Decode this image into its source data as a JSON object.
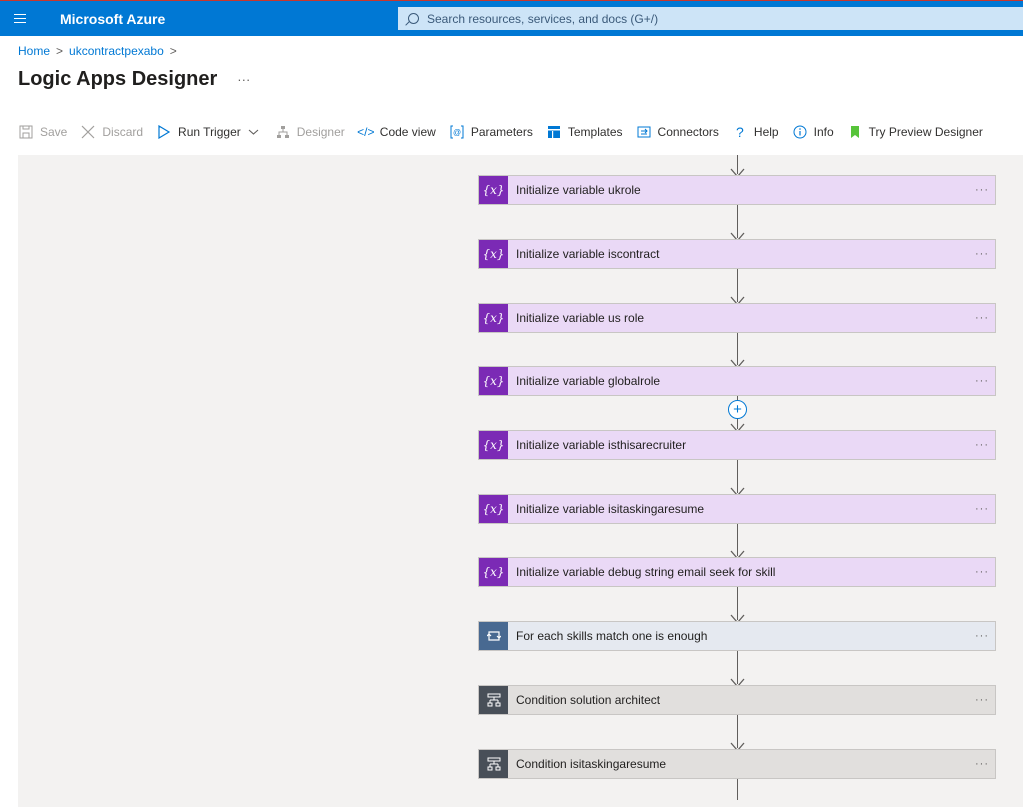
{
  "header": {
    "brand": "Microsoft Azure",
    "search_placeholder": "Search resources, services, and docs (G+/)"
  },
  "breadcrumb": {
    "home": "Home",
    "resource": "ukcontractpexabo",
    "sep": ">"
  },
  "page": {
    "title": "Logic Apps Designer",
    "more": "···"
  },
  "toolbar": {
    "save": "Save",
    "discard": "Discard",
    "run_trigger": "Run Trigger",
    "designer": "Designer",
    "code_view": "Code view",
    "parameters": "Parameters",
    "templates": "Templates",
    "connectors": "Connectors",
    "help": "Help",
    "info": "Info",
    "try_preview": "Try Preview Designer"
  },
  "steps": [
    {
      "label": "Initialize variable ukrole",
      "kind": "variable",
      "icon": "variable-icon"
    },
    {
      "label": "Initialize variable iscontract",
      "kind": "variable",
      "icon": "variable-icon"
    },
    {
      "label": "Initialize variable us role",
      "kind": "variable",
      "icon": "variable-icon"
    },
    {
      "label": "Initialize variable globalrole",
      "kind": "variable",
      "icon": "variable-icon"
    },
    {
      "label": "Initialize variable isthisarecruiter",
      "kind": "variable",
      "icon": "variable-icon"
    },
    {
      "label": "Initialize variable isitaskingaresume",
      "kind": "variable",
      "icon": "variable-icon"
    },
    {
      "label": "Initialize variable debug string email seek for skill",
      "kind": "variable",
      "icon": "variable-icon"
    },
    {
      "label": "For each skills match one is enough",
      "kind": "loop",
      "icon": "loop-icon"
    },
    {
      "label": "Condition solution architect",
      "kind": "condition",
      "icon": "condition-icon"
    },
    {
      "label": "Condition isitaskingaresume",
      "kind": "condition",
      "icon": "condition-icon"
    }
  ],
  "card_menu": "···",
  "variable_badge": "{x}",
  "colors": {
    "header": "#0078d4",
    "variable": "#7b2ab5",
    "loop": "#486991",
    "condition": "#484f58"
  }
}
